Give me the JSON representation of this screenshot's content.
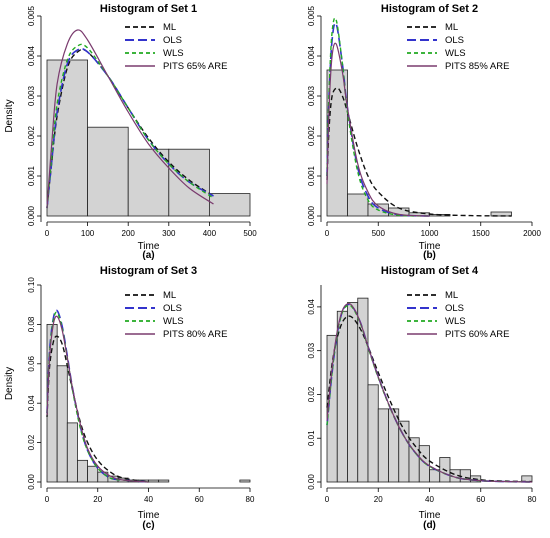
{
  "chart_data": [
    {
      "type": "bar",
      "title": "Histogram of Set 1",
      "subtitle": "(a)",
      "xlabel": "Time",
      "ylabel": "Density",
      "xlim": [
        0,
        500
      ],
      "ylim": [
        0,
        0.005
      ],
      "xticks": [
        "0",
        "100",
        "200",
        "300",
        "400",
        "500"
      ],
      "yticks": [
        "0.000",
        "0.001",
        "0.002",
        "0.003",
        "0.004",
        "0.005"
      ],
      "bins": [
        [
          0,
          100,
          0.0039
        ],
        [
          100,
          200,
          0.00222
        ],
        [
          200,
          300,
          0.00167
        ],
        [
          300,
          400,
          0.00167
        ],
        [
          400,
          500,
          0.00056
        ]
      ],
      "legend": [
        "ML",
        "OLS",
        "WLS",
        "PITS 65% ARE"
      ],
      "legend_position": "top-right",
      "series": [
        {
          "name": "ML",
          "x": [
            0,
            10,
            25,
            50,
            75,
            100,
            150,
            200,
            250,
            300,
            350,
            410
          ],
          "y": [
            0.0002,
            0.0012,
            0.0025,
            0.0037,
            0.0041,
            0.0041,
            0.0035,
            0.0027,
            0.00195,
            0.00135,
            0.0009,
            0.0005
          ]
        },
        {
          "name": "OLS",
          "x": [
            0,
            10,
            25,
            50,
            75,
            100,
            150,
            200,
            250,
            300,
            350,
            410
          ],
          "y": [
            0.0002,
            0.0012,
            0.0026,
            0.0038,
            0.00415,
            0.0041,
            0.0035,
            0.0027,
            0.0019,
            0.0013,
            0.00085,
            0.0005
          ]
        },
        {
          "name": "WLS",
          "x": [
            0,
            10,
            25,
            50,
            75,
            100,
            150,
            200,
            250,
            300,
            350,
            410
          ],
          "y": [
            0.0002,
            0.0013,
            0.0028,
            0.0039,
            0.00425,
            0.0042,
            0.0035,
            0.0027,
            0.0019,
            0.0013,
            0.00085,
            0.00045
          ]
        },
        {
          "name": "PITS 65% ARE",
          "x": [
            0,
            10,
            25,
            50,
            75,
            100,
            150,
            200,
            250,
            300,
            350,
            410
          ],
          "y": [
            0.0002,
            0.0016,
            0.0033,
            0.0043,
            0.00465,
            0.0044,
            0.0035,
            0.0026,
            0.0018,
            0.0012,
            0.0007,
            0.0003
          ]
        }
      ]
    },
    {
      "type": "bar",
      "title": "Histogram of Set 2",
      "subtitle": "(b)",
      "xlabel": "Time",
      "ylabel": "",
      "xlim": [
        0,
        2000
      ],
      "ylim": [
        0,
        0.005
      ],
      "xticks": [
        "0",
        "500",
        "1000",
        "1500",
        "2000"
      ],
      "yticks": [
        "0.000",
        "0.001",
        "0.002",
        "0.003",
        "0.004",
        "0.005"
      ],
      "bins": [
        [
          0,
          200,
          0.00365
        ],
        [
          200,
          400,
          0.00055
        ],
        [
          400,
          600,
          0.0003
        ],
        [
          600,
          800,
          0.0002
        ],
        [
          800,
          1000,
          8e-05
        ],
        [
          1000,
          1200,
          4e-05
        ],
        [
          1600,
          1800,
          0.0001
        ]
      ],
      "legend": [
        "ML",
        "OLS",
        "WLS",
        "PITS 85% ARE"
      ],
      "legend_position": "top-right",
      "series": [
        {
          "name": "ML",
          "x": [
            0,
            20,
            50,
            100,
            150,
            200,
            300,
            400,
            500,
            700,
            1000,
            1400,
            1800
          ],
          "y": [
            0.0009,
            0.0022,
            0.003,
            0.0032,
            0.003,
            0.0026,
            0.0017,
            0.001,
            0.0006,
            0.0002,
            5e-05,
            1e-05,
            0
          ]
        },
        {
          "name": "OLS",
          "x": [
            0,
            20,
            50,
            90,
            150,
            200,
            300,
            400,
            500,
            700,
            1000
          ],
          "y": [
            0.001,
            0.003,
            0.0044,
            0.0048,
            0.0038,
            0.0027,
            0.0012,
            0.0005,
            0.0002,
            3e-05,
            0
          ]
        },
        {
          "name": "WLS",
          "x": [
            0,
            20,
            50,
            90,
            150,
            200,
            300,
            400,
            500,
            700,
            1000
          ],
          "y": [
            0.001,
            0.0031,
            0.0046,
            0.0049,
            0.0038,
            0.0026,
            0.0011,
            0.0004,
            0.00015,
            2e-05,
            0
          ]
        },
        {
          "name": "PITS 85% ARE",
          "x": [
            0,
            20,
            50,
            90,
            150,
            200,
            300,
            400,
            500,
            700,
            1000
          ],
          "y": [
            0.0008,
            0.0027,
            0.004,
            0.0043,
            0.0036,
            0.0027,
            0.0013,
            0.0006,
            0.00025,
            4e-05,
            0
          ]
        }
      ]
    },
    {
      "type": "bar",
      "title": "Histogram of Set 3",
      "subtitle": "(c)",
      "xlabel": "Time",
      "ylabel": "Density",
      "xlim": [
        0,
        80
      ],
      "ylim": [
        0,
        0.1
      ],
      "xticks": [
        "0",
        "20",
        "40",
        "60",
        "80"
      ],
      "yticks": [
        "0.00",
        "0.02",
        "0.04",
        "0.06",
        "0.08",
        "0.10"
      ],
      "bins": [
        [
          0,
          4,
          0.08
        ],
        [
          4,
          8,
          0.059
        ],
        [
          8,
          12,
          0.03
        ],
        [
          12,
          16,
          0.011
        ],
        [
          16,
          20,
          0.008
        ],
        [
          20,
          24,
          0.005
        ],
        [
          24,
          28,
          0.003
        ],
        [
          28,
          32,
          0.002
        ],
        [
          32,
          36,
          0.001
        ],
        [
          36,
          40,
          0.001
        ],
        [
          40,
          44,
          0.001
        ],
        [
          44,
          48,
          0.001
        ],
        [
          76,
          80,
          0.001
        ]
      ],
      "legend": [
        "ML",
        "OLS",
        "WLS",
        "PITS 80% ARE"
      ],
      "legend_position": "top-right",
      "series": [
        {
          "name": "ML",
          "x": [
            0,
            1,
            2.5,
            4,
            6,
            8,
            10,
            13,
            16,
            20,
            25,
            30,
            40
          ],
          "y": [
            0.033,
            0.058,
            0.071,
            0.074,
            0.07,
            0.059,
            0.047,
            0.031,
            0.02,
            0.011,
            0.005,
            0.002,
            0
          ]
        },
        {
          "name": "OLS",
          "x": [
            0,
            1,
            2.5,
            4,
            6,
            8,
            10,
            13,
            16,
            20,
            25,
            30,
            40
          ],
          "y": [
            0.035,
            0.066,
            0.083,
            0.087,
            0.079,
            0.064,
            0.048,
            0.029,
            0.016,
            0.007,
            0.002,
            0.001,
            0
          ]
        },
        {
          "name": "WLS",
          "x": [
            0,
            1,
            2.5,
            4,
            6,
            8,
            10,
            13,
            16,
            20,
            25,
            30,
            40
          ],
          "y": [
            0.035,
            0.065,
            0.082,
            0.086,
            0.078,
            0.063,
            0.047,
            0.028,
            0.016,
            0.007,
            0.002,
            0.001,
            0
          ]
        },
        {
          "name": "PITS 80% ARE",
          "x": [
            0,
            1,
            2.5,
            4,
            6,
            8,
            10,
            13,
            16,
            20,
            25,
            30,
            40
          ],
          "y": [
            0.034,
            0.063,
            0.08,
            0.084,
            0.077,
            0.063,
            0.048,
            0.03,
            0.017,
            0.008,
            0.003,
            0.001,
            0
          ]
        }
      ]
    },
    {
      "type": "bar",
      "title": "Histogram of Set 4",
      "subtitle": "(d)",
      "xlabel": "Time",
      "ylabel": "",
      "xlim": [
        0,
        80
      ],
      "ylim": [
        0,
        0.045
      ],
      "xticks": [
        "0",
        "20",
        "40",
        "60",
        "80"
      ],
      "yticks": [
        "0.00",
        "0.01",
        "0.02",
        "0.03",
        "0.04"
      ],
      "bins": [
        [
          0,
          4,
          0.0335
        ],
        [
          4,
          8,
          0.039
        ],
        [
          8,
          12,
          0.041
        ],
        [
          12,
          16,
          0.042
        ],
        [
          16,
          20,
          0.0222
        ],
        [
          20,
          24,
          0.0167
        ],
        [
          24,
          28,
          0.0167
        ],
        [
          28,
          32,
          0.0139
        ],
        [
          32,
          36,
          0.0101
        ],
        [
          36,
          40,
          0.0083
        ],
        [
          40,
          44,
          0.0028
        ],
        [
          44,
          48,
          0.0056
        ],
        [
          48,
          52,
          0.0028
        ],
        [
          52,
          56,
          0.0028
        ],
        [
          56,
          60,
          0.0014
        ],
        [
          76,
          80,
          0.0014
        ]
      ],
      "legend": [
        "ML",
        "OLS",
        "WLS",
        "PITS 60% ARE"
      ],
      "legend_position": "top-right",
      "series": [
        {
          "name": "ML",
          "x": [
            0,
            2,
            4,
            6,
            8,
            10,
            13,
            16,
            20,
            25,
            30,
            35,
            40,
            50,
            60,
            70,
            80
          ],
          "y": [
            0.017,
            0.027,
            0.033,
            0.0365,
            0.0378,
            0.0375,
            0.035,
            0.031,
            0.025,
            0.018,
            0.012,
            0.0078,
            0.0048,
            0.0017,
            0.0005,
            0.0002,
            0.0001
          ]
        },
        {
          "name": "OLS",
          "x": [
            0,
            2,
            4,
            6,
            8,
            10,
            13,
            16,
            20,
            25,
            30,
            35,
            40,
            50,
            60,
            70,
            80
          ],
          "y": [
            0.013,
            0.025,
            0.034,
            0.039,
            0.0405,
            0.04,
            0.0365,
            0.031,
            0.024,
            0.0165,
            0.0105,
            0.0063,
            0.0036,
            0.0011,
            0.0003,
            0.0001,
            0
          ]
        },
        {
          "name": "WLS",
          "x": [
            0,
            2,
            4,
            6,
            8,
            10,
            13,
            16,
            20,
            25,
            30,
            35,
            40,
            50,
            60,
            70,
            80
          ],
          "y": [
            0.013,
            0.025,
            0.034,
            0.0388,
            0.0403,
            0.0398,
            0.0363,
            0.0308,
            0.0238,
            0.0164,
            0.0105,
            0.0063,
            0.0036,
            0.0011,
            0.0003,
            0.0001,
            0
          ]
        },
        {
          "name": "PITS 60% ARE",
          "x": [
            0,
            2,
            4,
            6,
            8,
            10,
            13,
            16,
            20,
            25,
            30,
            35,
            40,
            50,
            60,
            70,
            80
          ],
          "y": [
            0.014,
            0.026,
            0.0345,
            0.0392,
            0.0407,
            0.0401,
            0.0365,
            0.031,
            0.024,
            0.0165,
            0.0105,
            0.0064,
            0.0037,
            0.0011,
            0.0003,
            0.0001,
            0
          ]
        }
      ]
    }
  ],
  "styles": {
    "bar_fill": "#d3d3d3",
    "bar_stroke": "#222222",
    "colors": [
      "#111111",
      "#3333cc",
      "#22aa22",
      "#7a3b6e"
    ],
    "dashes": [
      "5,3",
      "9,4",
      "4,3",
      ""
    ],
    "widths": [
      1.4,
      1.6,
      1.4,
      1.2
    ]
  }
}
